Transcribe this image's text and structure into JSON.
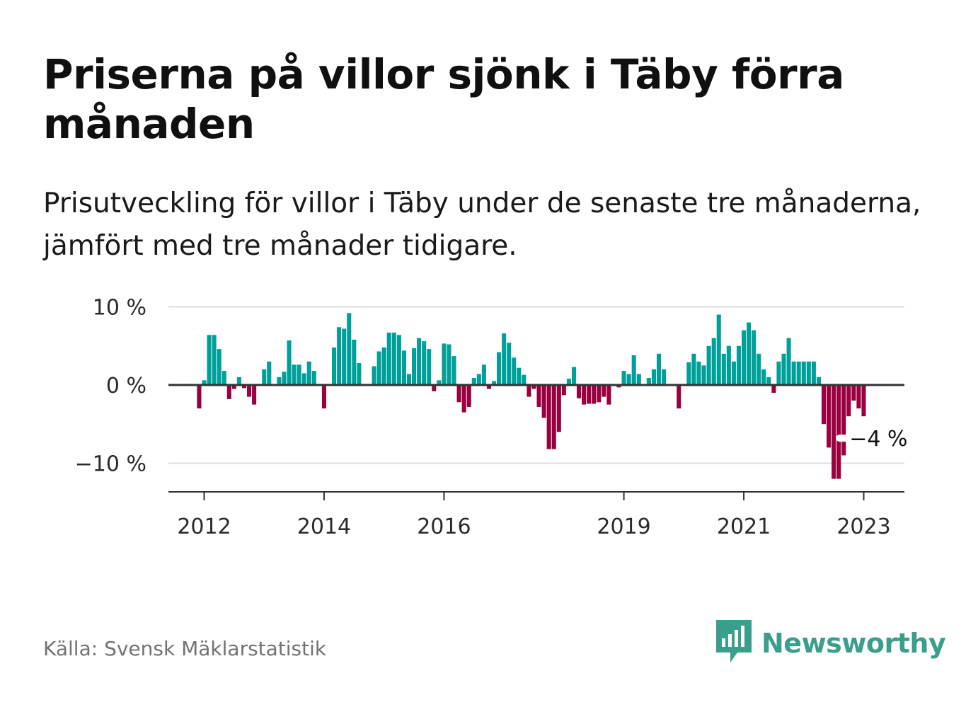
{
  "title": "Priserna på villor sjönk i Täby förra månaden",
  "subtitle": "Prisutveckling för villor i Täby under de senaste tre månaderna, jämfört med tre månader tidigare.",
  "source": "Källa: Svensk Mäklarstatistik",
  "brand": {
    "name": "Newsworthy",
    "icon": "newsworthy-logo-icon",
    "color": "#3a9e8d"
  },
  "colors": {
    "positive": "#00a09a",
    "negative": "#9a0040",
    "gridline": "#dddddd",
    "axis": "#333333"
  },
  "chart_data": {
    "type": "bar",
    "title": "Priserna på villor sjönk i Täby förra månaden",
    "xlabel": "",
    "ylabel": "",
    "ylim": [
      -14,
      10.5
    ],
    "y_ticks": [
      10,
      0,
      -10
    ],
    "y_tick_labels": [
      "10 %",
      "0 %",
      "−10 %"
    ],
    "x_tick_labels": [
      "2012",
      "2014",
      "2016",
      "2019",
      "2021",
      "2023"
    ],
    "x_tick_months": [
      "2012-01",
      "2014-01",
      "2016-01",
      "2019-01",
      "2021-01",
      "2023-01"
    ],
    "grid": true,
    "legend": "none",
    "unit": "%",
    "annotation": {
      "text": "−4 %",
      "x": "2023-01",
      "value": -4
    },
    "x": [
      "2011-12",
      "2012-01",
      "2012-02",
      "2012-03",
      "2012-04",
      "2012-05",
      "2012-06",
      "2012-07",
      "2012-08",
      "2012-09",
      "2012-10",
      "2012-11",
      "2012-12",
      "2013-01",
      "2013-02",
      "2013-03",
      "2013-04",
      "2013-05",
      "2013-06",
      "2013-07",
      "2013-08",
      "2013-09",
      "2013-10",
      "2013-11",
      "2013-12",
      "2014-01",
      "2014-02",
      "2014-03",
      "2014-04",
      "2014-05",
      "2014-06",
      "2014-07",
      "2014-08",
      "2014-09",
      "2014-10",
      "2014-11",
      "2014-12",
      "2015-01",
      "2015-02",
      "2015-03",
      "2015-04",
      "2015-05",
      "2015-06",
      "2015-07",
      "2015-08",
      "2015-09",
      "2015-10",
      "2015-11",
      "2015-12",
      "2016-01",
      "2016-02",
      "2016-03",
      "2016-04",
      "2016-05",
      "2016-06",
      "2016-07",
      "2016-08",
      "2016-09",
      "2016-10",
      "2016-11",
      "2016-12",
      "2017-01",
      "2017-02",
      "2017-03",
      "2017-04",
      "2017-05",
      "2017-06",
      "2017-07",
      "2017-08",
      "2017-09",
      "2017-10",
      "2017-11",
      "2017-12",
      "2018-01",
      "2018-02",
      "2018-03",
      "2018-04",
      "2018-05",
      "2018-06",
      "2018-07",
      "2018-08",
      "2018-09",
      "2018-10",
      "2018-11",
      "2018-12",
      "2019-01",
      "2019-02",
      "2019-03",
      "2019-04",
      "2019-05",
      "2019-06",
      "2019-07",
      "2019-08",
      "2019-09",
      "2019-10",
      "2019-11",
      "2019-12",
      "2020-01",
      "2020-02",
      "2020-03",
      "2020-04",
      "2020-05",
      "2020-06",
      "2020-07",
      "2020-08",
      "2020-09",
      "2020-10",
      "2020-11",
      "2020-12",
      "2021-01",
      "2021-02",
      "2021-03",
      "2021-04",
      "2021-05",
      "2021-06",
      "2021-07",
      "2021-08",
      "2021-09",
      "2021-10",
      "2021-11",
      "2021-12",
      "2022-01",
      "2022-02",
      "2022-03",
      "2022-04",
      "2022-05",
      "2022-06",
      "2022-07",
      "2022-08",
      "2022-09",
      "2022-10",
      "2022-11",
      "2022-12",
      "2023-01"
    ],
    "values": [
      -3.0,
      0.6,
      6.4,
      6.4,
      4.6,
      1.8,
      -1.8,
      -0.5,
      1.0,
      -0.4,
      -1.5,
      -2.5,
      null,
      2.0,
      3.0,
      null,
      1.0,
      1.7,
      5.7,
      2.6,
      2.6,
      1.5,
      3.0,
      1.8,
      null,
      -3.0,
      null,
      4.8,
      7.4,
      7.2,
      9.2,
      5.8,
      2.8,
      null,
      null,
      2.4,
      4.3,
      4.8,
      6.7,
      6.7,
      6.4,
      4.4,
      1.4,
      4.7,
      6.0,
      5.6,
      4.6,
      -0.8,
      0.6,
      5.3,
      5.2,
      3.7,
      -2.2,
      -3.5,
      -2.8,
      0.9,
      1.4,
      2.6,
      -0.5,
      0.5,
      4.2,
      6.6,
      5.4,
      3.5,
      2.2,
      1.3,
      -1.5,
      -0.5,
      -2.8,
      -4.2,
      -8.2,
      -8.2,
      -6.0,
      -1.3,
      0.8,
      2.3,
      -1.7,
      -2.5,
      -2.4,
      -2.4,
      -2.2,
      -1.5,
      -2.5,
      null,
      -0.3,
      1.8,
      1.4,
      3.8,
      1.4,
      null,
      0.9,
      2.0,
      4.0,
      2.0,
      null,
      null,
      -3.0,
      null,
      2.9,
      4.0,
      3.0,
      2.5,
      5.0,
      6.0,
      9.0,
      4.0,
      5.0,
      3.0,
      5.0,
      7.0,
      8.0,
      7.0,
      4.0,
      2.0,
      1.0,
      -1.0,
      3.0,
      4.0,
      6.0,
      3.0,
      3.0,
      3.0,
      3.0,
      3.0,
      1.0,
      -5.0,
      -8.0,
      -12.0,
      -12.0,
      -9.0,
      -4.0,
      -2.0,
      -3.0,
      -4.0
    ]
  }
}
